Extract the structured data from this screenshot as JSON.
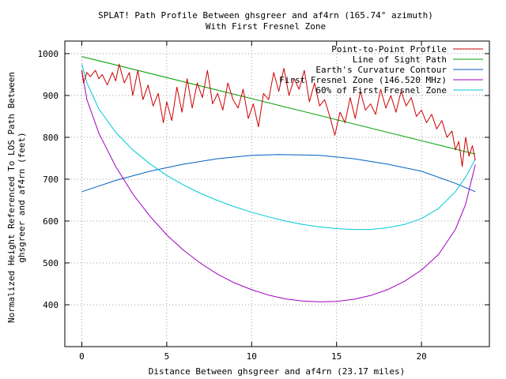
{
  "chart_data": {
    "type": "line",
    "title": "SPLAT! Path Profile Between ghsgreer and af4rn (165.74° azimuth)",
    "subtitle": "With First Fresnel Zone",
    "xlabel": "Distance Between ghsgreer and af4rn (23.17 miles)",
    "ylabel_line1": "Normalized Height Referenced To LOS Path Between",
    "ylabel_line2": "ghsgreer and af4rn (feet)",
    "xlim": [
      -1,
      24
    ],
    "ylim": [
      300,
      1030
    ],
    "x_ticks": [
      0,
      5,
      10,
      15,
      20
    ],
    "y_ticks": [
      400,
      500,
      600,
      700,
      800,
      900,
      1000
    ],
    "grid": true,
    "legend_position": "top-right",
    "series": [
      {
        "name": "Point-to-Point Profile",
        "color": "#cc0000",
        "x": [
          0,
          0.1,
          0.3,
          0.5,
          0.8,
          1.0,
          1.2,
          1.5,
          1.8,
          2.0,
          2.2,
          2.5,
          2.8,
          3.0,
          3.3,
          3.6,
          3.9,
          4.2,
          4.5,
          4.8,
          5.0,
          5.3,
          5.6,
          5.9,
          6.2,
          6.5,
          6.8,
          7.1,
          7.4,
          7.7,
          8.0,
          8.3,
          8.6,
          8.9,
          9.2,
          9.5,
          9.8,
          10.1,
          10.4,
          10.7,
          11.0,
          11.3,
          11.6,
          11.9,
          12.2,
          12.5,
          12.8,
          13.1,
          13.4,
          13.7,
          14.0,
          14.3,
          14.6,
          14.9,
          15.2,
          15.5,
          15.8,
          16.1,
          16.4,
          16.7,
          17.0,
          17.3,
          17.6,
          17.9,
          18.2,
          18.5,
          18.8,
          19.1,
          19.4,
          19.7,
          20.0,
          20.3,
          20.6,
          20.9,
          21.2,
          21.5,
          21.8,
          22.0,
          22.2,
          22.4,
          22.6,
          22.8,
          23.0,
          23.17
        ],
        "values": [
          960,
          930,
          955,
          945,
          960,
          940,
          950,
          925,
          955,
          935,
          975,
          930,
          955,
          900,
          960,
          890,
          925,
          875,
          905,
          835,
          885,
          840,
          920,
          860,
          940,
          870,
          930,
          895,
          960,
          880,
          905,
          865,
          930,
          890,
          870,
          915,
          845,
          880,
          825,
          905,
          890,
          955,
          910,
          965,
          900,
          940,
          915,
          960,
          885,
          930,
          875,
          890,
          850,
          805,
          860,
          835,
          895,
          845,
          910,
          865,
          880,
          855,
          915,
          870,
          900,
          860,
          910,
          875,
          895,
          850,
          865,
          835,
          855,
          820,
          840,
          800,
          815,
          770,
          790,
          730,
          800,
          755,
          780,
          745
        ]
      },
      {
        "name": "Line of Sight Path",
        "color": "#00a000",
        "x": [
          0,
          23.17
        ],
        "values": [
          993,
          760
        ]
      },
      {
        "name": "Earth's Curvature Contour",
        "color": "#0060c0",
        "x": [
          0,
          2,
          4,
          6,
          8,
          10,
          11.58,
          14,
          16,
          18,
          20,
          22,
          23.17
        ],
        "values": [
          670,
          697,
          719,
          736,
          749,
          757,
          759,
          757,
          749,
          736,
          719,
          690,
          670
        ]
      },
      {
        "name": "First Fresnel Zone (146.520 MHz)",
        "color": "#a000c0",
        "x": [
          0,
          0.3,
          1,
          2,
          3,
          4,
          5,
          6,
          7,
          8,
          9,
          10,
          11,
          12,
          13,
          14,
          15,
          16,
          17,
          18,
          19,
          20,
          21,
          22,
          22.6,
          23.17
        ],
        "values": [
          960,
          890,
          810,
          730,
          665,
          612,
          567,
          530,
          499,
          473,
          452,
          436,
          423,
          414,
          409,
          407,
          408,
          413,
          422,
          436,
          456,
          483,
          520,
          580,
          640,
          735
        ]
      },
      {
        "name": "60% of First Fresnel Zone",
        "color": "#00c8d8",
        "x": [
          0,
          0.3,
          1,
          2,
          3,
          4,
          5,
          6,
          7,
          8,
          9,
          10,
          11,
          12,
          13,
          14,
          15,
          16,
          17,
          18,
          19,
          20,
          21,
          22,
          22.6,
          23.17
        ],
        "values": [
          975,
          930,
          868,
          812,
          770,
          737,
          709,
          686,
          666,
          649,
          634,
          621,
          610,
          600,
          592,
          586,
          582,
          580,
          580,
          584,
          592,
          606,
          630,
          670,
          705,
          748
        ]
      }
    ]
  }
}
